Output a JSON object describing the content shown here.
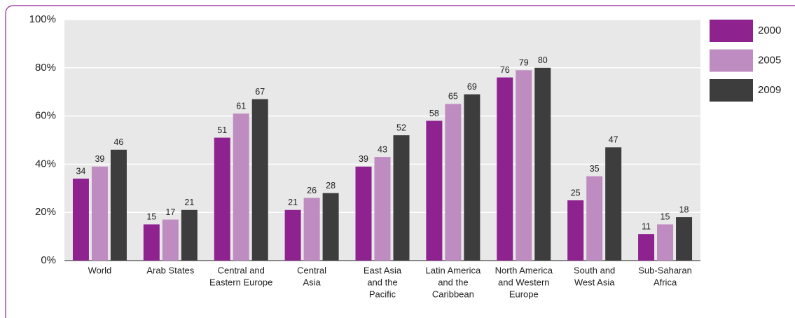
{
  "chart_data": {
    "type": "bar",
    "categories": [
      [
        "World"
      ],
      [
        "Arab States"
      ],
      [
        "Central and",
        "Eastern Europe"
      ],
      [
        "Central",
        "Asia"
      ],
      [
        "East Asia",
        "and the",
        "Pacific"
      ],
      [
        "Latin America",
        "and the",
        "Caribbean"
      ],
      [
        "North America",
        "and Western",
        "Europe"
      ],
      [
        "South and",
        "West Asia"
      ],
      [
        "Sub-Saharan",
        "Africa"
      ]
    ],
    "series": [
      {
        "name": "2000",
        "color": "#8e2390",
        "values": [
          34,
          15,
          51,
          21,
          39,
          58,
          76,
          25,
          11
        ]
      },
      {
        "name": "2005",
        "color": "#bf8cc1",
        "values": [
          39,
          17,
          61,
          26,
          43,
          65,
          79,
          35,
          15
        ]
      },
      {
        "name": "2009",
        "color": "#3d3d3d",
        "values": [
          46,
          21,
          67,
          28,
          52,
          69,
          80,
          47,
          18
        ]
      }
    ],
    "ylim": [
      0,
      100
    ],
    "yticks": [
      {
        "value": 0,
        "label": "0%"
      },
      {
        "value": 20,
        "label": "20%"
      },
      {
        "value": 40,
        "label": "40%"
      },
      {
        "value": 60,
        "label": "60%"
      },
      {
        "value": 80,
        "label": "80%"
      },
      {
        "value": 100,
        "label": "100%"
      }
    ],
    "grid": true,
    "legend": "right"
  }
}
